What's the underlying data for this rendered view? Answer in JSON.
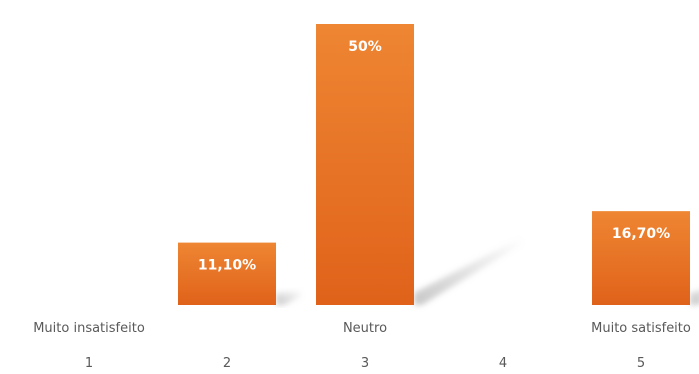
{
  "chart_data": {
    "type": "bar",
    "categories": [
      "1",
      "2",
      "3",
      "4",
      "5"
    ],
    "category_descriptions": [
      "Muito insatisfeito",
      "",
      "Neutro",
      "",
      "Muito satisfeito"
    ],
    "values": [
      0,
      11.1,
      50,
      0,
      16.7
    ],
    "value_labels": [
      "",
      "11,10%",
      "50%",
      "",
      "16,70%"
    ],
    "ylim": [
      0,
      50
    ],
    "grid": false,
    "legend": "none",
    "bar_color_top": "#EE8633",
    "bar_color_bottom": "#E0621A",
    "shadow_color": "#9a9a9a",
    "text_color": "#595959",
    "value_label_color": "#ffffff"
  }
}
